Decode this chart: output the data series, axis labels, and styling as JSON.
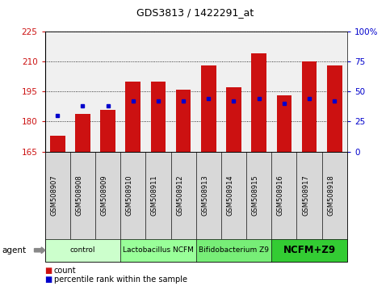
{
  "title": "GDS3813 / 1422291_at",
  "categories": [
    "GSM508907",
    "GSM508908",
    "GSM508909",
    "GSM508910",
    "GSM508911",
    "GSM508912",
    "GSM508913",
    "GSM508914",
    "GSM508915",
    "GSM508916",
    "GSM508917",
    "GSM508918"
  ],
  "bar_values": [
    173,
    184,
    186,
    200,
    200,
    196,
    208,
    197,
    214,
    193,
    210,
    208
  ],
  "percentile_values": [
    30,
    38,
    38,
    42,
    42,
    42,
    44,
    42,
    44,
    40,
    44,
    42
  ],
  "bar_color": "#cc1111",
  "percentile_color": "#0000cc",
  "ylim_left": [
    165,
    225
  ],
  "ylim_right": [
    0,
    100
  ],
  "yticks_left": [
    165,
    180,
    195,
    210,
    225
  ],
  "yticks_right": [
    0,
    25,
    50,
    75,
    100
  ],
  "bar_width": 0.6,
  "groups": [
    {
      "label": "control",
      "start": 0,
      "end": 2,
      "color": "#ccffcc"
    },
    {
      "label": "Lactobacillus NCFM",
      "start": 3,
      "end": 5,
      "color": "#99ff99"
    },
    {
      "label": "Bifidobacterium Z9",
      "start": 6,
      "end": 8,
      "color": "#77ee77"
    },
    {
      "label": "NCFM+Z9",
      "start": 9,
      "end": 11,
      "color": "#33cc33"
    }
  ],
  "background_color": "#ffffff",
  "plot_bg_color": "#f0f0f0",
  "ylabel_left_color": "#cc1111",
  "ylabel_right_color": "#0000cc",
  "legend_count_color": "#cc1111",
  "legend_pct_color": "#0000cc"
}
